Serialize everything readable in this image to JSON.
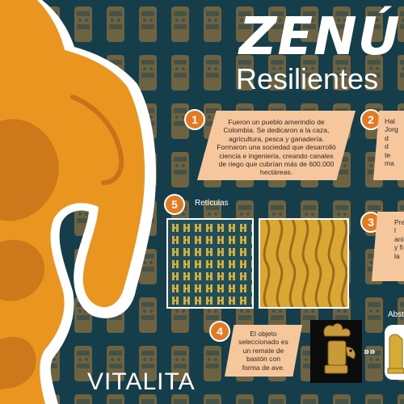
{
  "title": "ZENÚ",
  "subtitle": "Resilientes",
  "footer_title": "VITALITA",
  "colors": {
    "background": "#163e4a",
    "accent": "#e47b24",
    "card": "#f6c79c",
    "figure": "#e9951f",
    "gold": "#d6ac36"
  },
  "steps": [
    {
      "number": "1",
      "lines": [
        "Fueron un pueblo amerindio de",
        "Colombia. Se dedicaron a la caza,",
        "agricultura, pesca y ganadería.",
        "Formaron una sociedad que desarrolló",
        "ciencia e ingenieria, creando canales",
        "de riego que cubrían más de 600.000",
        "hectáreas."
      ]
    },
    {
      "number": "2",
      "lines": [
        "Hal",
        "Jorg",
        "d",
        "d",
        "te",
        "ma"
      ]
    },
    {
      "number": "3",
      "lines": [
        "Pra",
        "l",
        "anim",
        "y fi",
        "la"
      ]
    },
    {
      "number": "4",
      "lines": [
        "El objeto",
        "seleccionado es",
        "un remate de",
        "bastón con",
        "forma de ave."
      ]
    },
    {
      "number": "5",
      "label": "Retículas"
    }
  ],
  "abstraction_label": "Abst",
  "arrow_symbol": "»»"
}
